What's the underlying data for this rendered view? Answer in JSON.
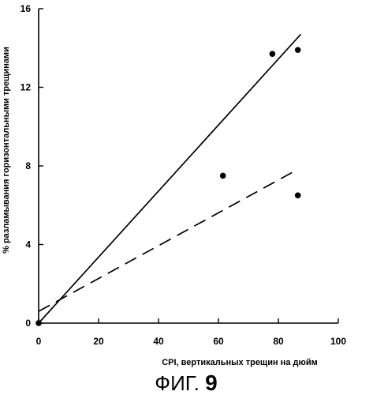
{
  "chart_data": {
    "type": "scatter",
    "title": "",
    "xlabel": "CPI, вертикальных трещин на дюйм",
    "ylabel": "% разламывания горизонтальными трещинами",
    "xlim": [
      0,
      100
    ],
    "ylim": [
      0,
      16
    ],
    "x_ticks": [
      "0",
      "20",
      "40",
      "60",
      "80",
      "100"
    ],
    "y_ticks": [
      "0",
      "4",
      "8",
      "12",
      "16"
    ],
    "grid": false,
    "series": [
      {
        "style": "markers",
        "points": [
          [
            0,
            0
          ],
          [
            61.5,
            7.5
          ],
          [
            78,
            13.7
          ],
          [
            86.5,
            13.9
          ],
          [
            86.5,
            6.5
          ]
        ]
      },
      {
        "style": "solid-line",
        "points": [
          [
            0,
            0
          ],
          [
            87.5,
            14.7
          ]
        ]
      },
      {
        "style": "dashed-line",
        "points": [
          [
            0,
            0.6
          ],
          [
            85,
            7.7
          ]
        ]
      }
    ]
  },
  "caption": {
    "prefix": "ФИГ.",
    "number": "9"
  }
}
